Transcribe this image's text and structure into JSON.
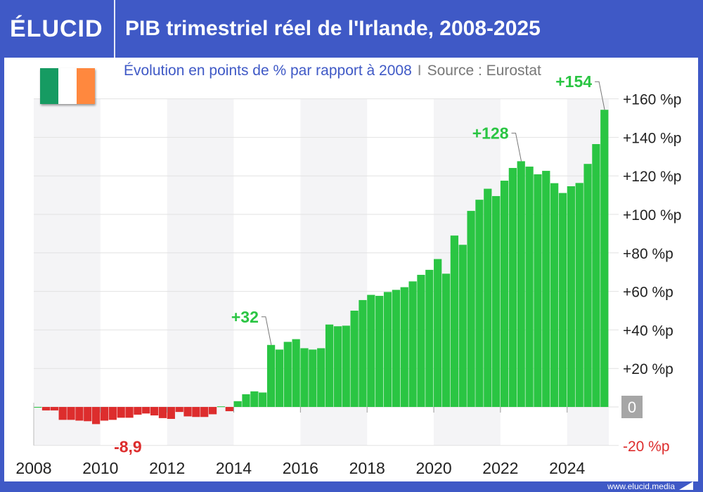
{
  "header": {
    "logo": "ÉLUCID",
    "title": "PIB trimestriel réel de l'Irlande, 2008-2025"
  },
  "subtitle": {
    "text": "Évolution en points de % par rapport à 2008",
    "separator": "I",
    "source": "Source : Eurostat"
  },
  "flag": {
    "icon": "ireland-flag-icon",
    "colors": [
      "#169b62",
      "#ffffff",
      "#ff883e"
    ]
  },
  "footer": {
    "url": "www.elucid.media"
  },
  "colors": {
    "positive": "#2ac543",
    "negative": "#dd2d2d",
    "brand": "#3f59c6",
    "zero_box": "#a6a6a6"
  },
  "chart_data": {
    "type": "bar",
    "frequency": "quarterly",
    "start": "2008Q1",
    "x_tick_labels": [
      "2008",
      "2010",
      "2012",
      "2014",
      "2016",
      "2018",
      "2020",
      "2022",
      "2024"
    ],
    "y_tick_labels": [
      "+160 %p",
      "+140 %p",
      "+120 %p",
      "+100 %p",
      "+80 %p",
      "+60 %p",
      "+40 %p",
      "+20 %p",
      "0",
      "-20 %p"
    ],
    "y_ticks": [
      160,
      140,
      120,
      100,
      80,
      60,
      40,
      20,
      0,
      -20
    ],
    "ylim": [
      -20,
      160
    ],
    "xlim": [
      2008,
      2025.25
    ],
    "grid": true,
    "values": [
      0,
      -1.8,
      -1.8,
      -6.7,
      -6.7,
      -7.1,
      -7.4,
      -8.9,
      -7.1,
      -6.7,
      -5.6,
      -5.6,
      -4.0,
      -3.4,
      -4.4,
      -5.8,
      -6.2,
      -2.6,
      -4.9,
      -5.2,
      -5.2,
      -3.8,
      0.3,
      -2.2,
      3.0,
      6.6,
      8.1,
      7.5,
      32.2,
      29.8,
      33.8,
      35.2,
      30.5,
      29.8,
      30.5,
      42.8,
      41.9,
      42.2,
      50.0,
      55.5,
      58.2,
      57.7,
      59.7,
      60.8,
      62.2,
      65.2,
      68.6,
      71.2,
      76.8,
      69.2,
      89.0,
      84.2,
      101.8,
      107.6,
      113.3,
      109.5,
      117.5,
      124.1,
      127.6,
      124.8,
      120.8,
      122.6,
      116.2,
      111.1,
      114.6,
      116.3,
      126.2,
      136.5,
      154.3
    ],
    "annotations": [
      {
        "index": 7,
        "text": "-8,9"
      },
      {
        "index": 28,
        "text": "+32"
      },
      {
        "index": 58,
        "text": "+128"
      },
      {
        "index": 68,
        "text": "+154"
      }
    ]
  }
}
